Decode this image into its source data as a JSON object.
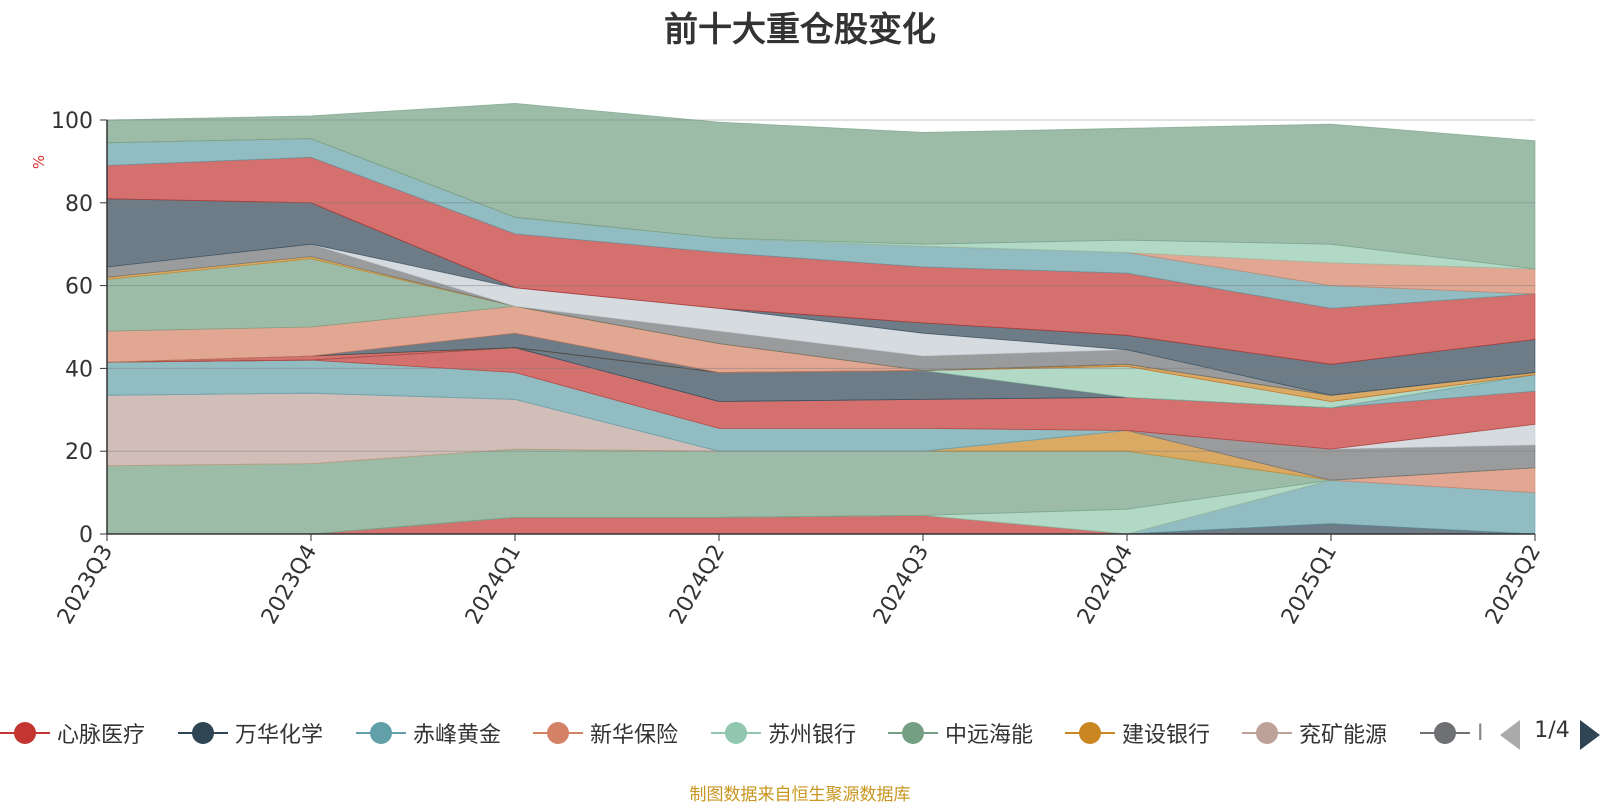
{
  "chart_data": {
    "type": "area",
    "title": "前十大重仓股变化",
    "ylabel": "%",
    "ylim": [
      0,
      100
    ],
    "yticks": [
      0,
      20,
      40,
      60,
      80,
      100
    ],
    "grid": true,
    "stacked": true,
    "x": [
      "2023Q3",
      "2023Q4",
      "2024Q1",
      "2024Q2",
      "2024Q3",
      "2024Q4",
      "2025Q1",
      "2025Q2"
    ],
    "series": [
      {
        "name": "心脉医疗",
        "color": "#c23531",
        "values": [
          0,
          0,
          4,
          4,
          4.5,
          0,
          0,
          0
        ]
      },
      {
        "name": "万华化学",
        "color": "#2f4554",
        "values": [
          0,
          0,
          0,
          0,
          0,
          0,
          2.5,
          0
        ]
      },
      {
        "name": "赤峰黄金",
        "color": "#61a0a8",
        "values": [
          0,
          0,
          0,
          0,
          0,
          0,
          10.5,
          10
        ]
      },
      {
        "name": "新华保险",
        "color": "#d48265",
        "values": [
          0,
          0,
          0,
          0,
          0,
          0,
          0,
          6
        ]
      },
      {
        "name": "苏州银行",
        "color": "#91c7ae",
        "values": [
          0,
          0,
          0,
          0,
          0,
          6,
          0,
          0
        ]
      },
      {
        "name": "中远海能",
        "color": "#749f83",
        "values": [
          16.5,
          17,
          16.5,
          16,
          15.5,
          14,
          0,
          0
        ]
      },
      {
        "name": "建设银行",
        "color": "#ca8622",
        "values": [
          0,
          0,
          0,
          0,
          0,
          5,
          0,
          0
        ]
      },
      {
        "name": "兖矿能源",
        "color": "#bda29a",
        "values": [
          17,
          17,
          12,
          0,
          0,
          0,
          0,
          0
        ]
      },
      {
        "name": "",
        "color": "#6e7074",
        "values": [
          0,
          0,
          0,
          0,
          0,
          0,
          7.5,
          5.5
        ]
      },
      {
        "name": "",
        "color": "#c4ccd3",
        "values": [
          0,
          0,
          0,
          0,
          0,
          0,
          0,
          5
        ]
      },
      {
        "name": "",
        "color": "#61a0a8",
        "values": [
          8,
          8,
          6.5,
          5.5,
          5.5,
          0,
          0,
          0
        ]
      },
      {
        "name": "",
        "color": "#c23531",
        "values": [
          0,
          0,
          6,
          6.5,
          7,
          8,
          10,
          8
        ]
      },
      {
        "name": "",
        "color": "#61a0a8",
        "values": [
          0,
          0,
          0,
          0,
          0,
          0,
          0,
          4
        ]
      },
      {
        "name": "",
        "color": "#2f4554",
        "values": [
          0,
          0,
          0,
          7,
          7,
          0,
          0,
          0
        ]
      },
      {
        "name": "",
        "color": "#91c7ae",
        "values": [
          0,
          0,
          0,
          0,
          0,
          7.5,
          1.5,
          0
        ]
      },
      {
        "name": "",
        "color": "#c23531",
        "values": [
          0,
          1,
          0,
          0,
          0,
          0,
          0,
          0
        ]
      },
      {
        "name": "",
        "color": "#ca8622",
        "values": [
          0,
          0,
          0,
          0,
          0,
          0.5,
          1.5,
          0.5
        ]
      },
      {
        "name": "",
        "color": "#2f4554",
        "values": [
          0,
          0,
          3.5,
          0,
          0,
          0,
          0,
          0
        ]
      },
      {
        "name": "",
        "color": "#d48265",
        "values": [
          7.5,
          7,
          6.5,
          7,
          0,
          0,
          0,
          0
        ]
      },
      {
        "name": "",
        "color": "#749f83",
        "values": [
          12.5,
          16.5,
          0,
          0,
          0,
          0,
          0,
          0
        ]
      },
      {
        "name": "",
        "color": "#ca8622",
        "values": [
          0.5,
          0.5,
          0,
          0,
          0,
          0,
          0,
          0
        ]
      },
      {
        "name": "",
        "color": "#6e7074",
        "values": [
          2.5,
          3,
          0,
          3,
          3.5,
          3.5,
          0,
          0
        ]
      },
      {
        "name": "",
        "color": "#c4ccd3",
        "values": [
          0,
          0,
          4.5,
          5.5,
          5.5,
          0,
          0,
          0
        ]
      },
      {
        "name": "",
        "color": "#2f4554",
        "values": [
          16.5,
          10,
          0,
          0,
          2.5,
          3.5,
          7.5,
          8
        ]
      },
      {
        "name": "",
        "color": "#c23531",
        "values": [
          8,
          11,
          13,
          13.5,
          13.5,
          15,
          13.5,
          11
        ]
      },
      {
        "name": "",
        "color": "#61a0a8",
        "values": [
          5.5,
          4.5,
          4,
          3.5,
          5,
          5,
          5.5,
          0
        ]
      },
      {
        "name": "",
        "color": "#d48265",
        "values": [
          0,
          0,
          0,
          0,
          0,
          0,
          5.5,
          6
        ]
      },
      {
        "name": "",
        "color": "#91c7ae",
        "values": [
          0,
          0,
          0,
          0,
          0.5,
          3,
          4.5,
          0
        ]
      },
      {
        "name": "",
        "color": "#749f83",
        "values": [
          5.5,
          5.5,
          27.5,
          28,
          27,
          27,
          29,
          31
        ]
      }
    ]
  },
  "legend": {
    "items": [
      {
        "label": "心脉医疗",
        "color": "#c23531"
      },
      {
        "label": "万华化学",
        "color": "#2f4554"
      },
      {
        "label": "赤峰黄金",
        "color": "#61a0a8"
      },
      {
        "label": "新华保险",
        "color": "#d48265"
      },
      {
        "label": "苏州银行",
        "color": "#91c7ae"
      },
      {
        "label": "中远海能",
        "color": "#749f83"
      },
      {
        "label": "建设银行",
        "color": "#ca8622"
      },
      {
        "label": "兖矿能源",
        "color": "#bda29a"
      },
      {
        "label": "I",
        "color": "#6e7074"
      }
    ],
    "page": "1/4"
  },
  "source_note": "制图数据来自恒生聚源数据库"
}
